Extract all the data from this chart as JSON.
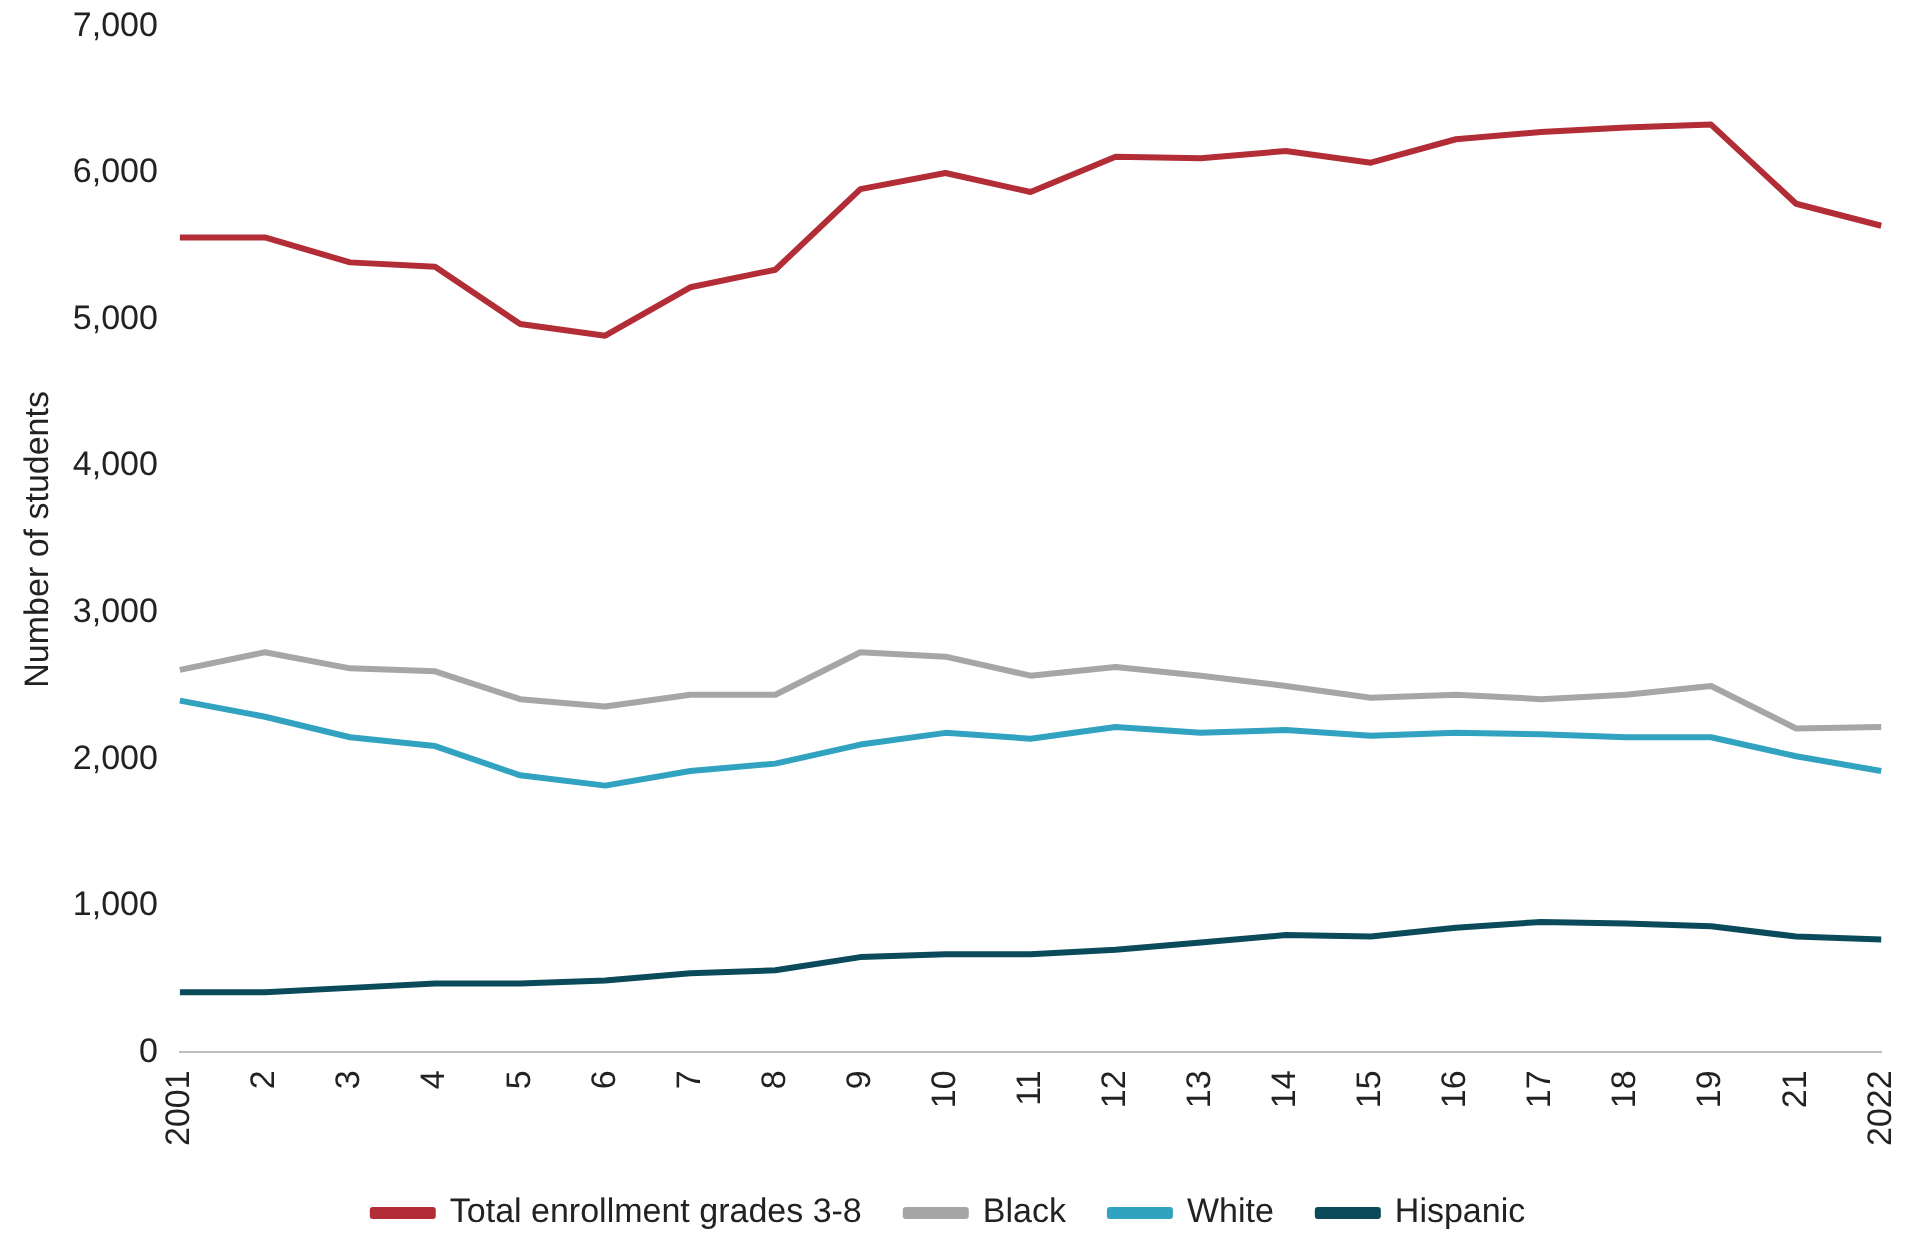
{
  "chart_data": {
    "type": "line",
    "ylabel": "Number of students",
    "categories": [
      "2001",
      "2",
      "3",
      "4",
      "5",
      "6",
      "7",
      "8",
      "9",
      "10",
      "11",
      "12",
      "13",
      "14",
      "15",
      "16",
      "17",
      "18",
      "19",
      "21",
      "2022"
    ],
    "series": [
      {
        "name": "Total enrollment grades 3-8",
        "color": "#b22d35",
        "values": [
          5560,
          5560,
          5390,
          5360,
          4970,
          4890,
          5220,
          5340,
          5890,
          6000,
          5870,
          6110,
          6100,
          6150,
          6070,
          6230,
          6280,
          6310,
          6330,
          5790,
          5640
        ]
      },
      {
        "name": "Black",
        "color": "#a6a6a6",
        "values": [
          2610,
          2730,
          2620,
          2600,
          2410,
          2360,
          2440,
          2440,
          2730,
          2700,
          2570,
          2630,
          2570,
          2500,
          2420,
          2440,
          2410,
          2440,
          2500,
          2210,
          2220
        ]
      },
      {
        "name": "White",
        "color": "#31a2c0",
        "values": [
          2400,
          2290,
          2150,
          2090,
          1890,
          1820,
          1920,
          1970,
          2100,
          2180,
          2140,
          2220,
          2180,
          2200,
          2160,
          2180,
          2170,
          2150,
          2150,
          2020,
          1920
        ]
      },
      {
        "name": "Hispanic",
        "color": "#0b4a5a",
        "values": [
          410,
          410,
          440,
          470,
          470,
          490,
          540,
          560,
          650,
          670,
          670,
          700,
          750,
          800,
          790,
          850,
          890,
          880,
          860,
          790,
          770
        ]
      }
    ],
    "ylim": [
      0,
      7000
    ],
    "yticks": [
      0,
      {
        "value": 1000,
        "label": "1,000"
      },
      {
        "value": 2000,
        "label": "2,000"
      },
      {
        "value": 3000,
        "label": "3,000"
      },
      {
        "value": 4000,
        "label": "4,000"
      },
      {
        "value": 5000,
        "label": "5,000"
      },
      {
        "value": 6000,
        "label": "6,000"
      },
      {
        "value": 7000,
        "label": "7,000"
      }
    ],
    "grid": false,
    "legend": "bottom",
    "marker": "none",
    "line_style": "solid"
  }
}
